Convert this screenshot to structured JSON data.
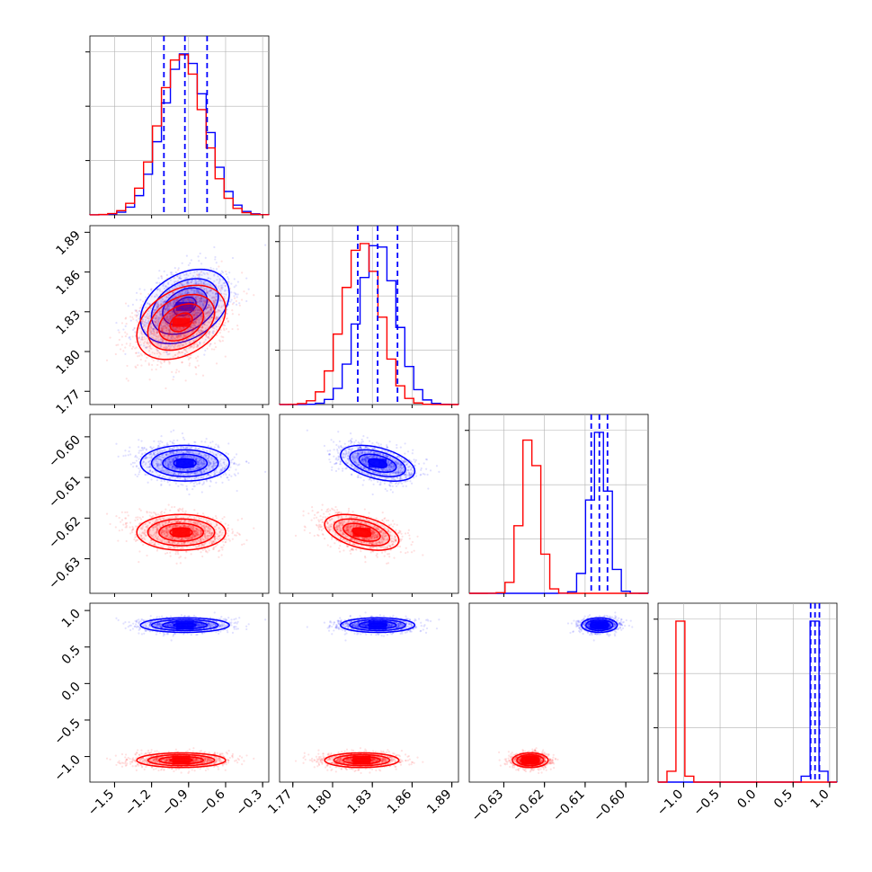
{
  "chart_data": {
    "type": "corner",
    "colors": {
      "blue": "#0000ff",
      "red": "#ff0000",
      "grid": "#b0b0b0",
      "quantile_line": "#0000ff"
    },
    "parameters": [
      {
        "range": [
          -1.7,
          -0.25
        ],
        "ticks": [
          -1.5,
          -1.2,
          -0.9,
          -0.6,
          -0.3
        ],
        "tick_labels": [
          "−1.5",
          "−1.2",
          "−0.9",
          "−0.6",
          "−0.3"
        ]
      },
      {
        "range": [
          1.76,
          1.895
        ],
        "ticks": [
          1.77,
          1.8,
          1.83,
          1.86,
          1.89
        ],
        "tick_labels": [
          "1.77",
          "1.80",
          "1.83",
          "1.86",
          "1.89"
        ]
      },
      {
        "range": [
          -0.6385,
          -0.5945
        ],
        "ticks": [
          -0.63,
          -0.62,
          -0.61,
          -0.6
        ],
        "tick_labels": [
          "−0.63",
          "−0.62",
          "−0.61",
          "−0.60"
        ]
      },
      {
        "range": [
          -1.35,
          1.1
        ],
        "ticks": [
          -1.0,
          -0.5,
          0.0,
          0.5,
          1.0
        ],
        "tick_labels": [
          "−1.0",
          "−0.5",
          "0.0",
          "0.5",
          "1.0"
        ]
      }
    ],
    "series": [
      {
        "name": "blue",
        "color": "#0000ff",
        "means": [
          -0.93,
          1.834,
          -0.6065,
          0.8
        ],
        "stds": [
          0.18,
          0.014,
          0.0022,
          0.05
        ],
        "correlations": {
          "0-1": 0.35,
          "0-2": 0.0,
          "0-3": 0.0,
          "1-2": -0.45,
          "1-3": 0.0,
          "2-3": 0.0
        }
      },
      {
        "name": "red",
        "color": "#ff0000",
        "means": [
          -0.96,
          1.822,
          -0.6235,
          -1.05
        ],
        "stds": [
          0.18,
          0.014,
          0.0022,
          0.05
        ],
        "correlations": {
          "0-1": 0.35,
          "0-2": 0.0,
          "0-3": 0.0,
          "1-2": -0.45,
          "1-3": 0.0,
          "2-3": 0.0
        }
      }
    ],
    "quantile_lines": [
      [
        -1.1,
        -0.93,
        -0.75
      ],
      [
        1.819,
        1.834,
        1.849
      ],
      [
        -0.6085,
        -0.6065,
        -0.6045
      ],
      [
        0.74,
        0.8,
        0.86
      ]
    ],
    "grid": true,
    "legend": "none"
  }
}
